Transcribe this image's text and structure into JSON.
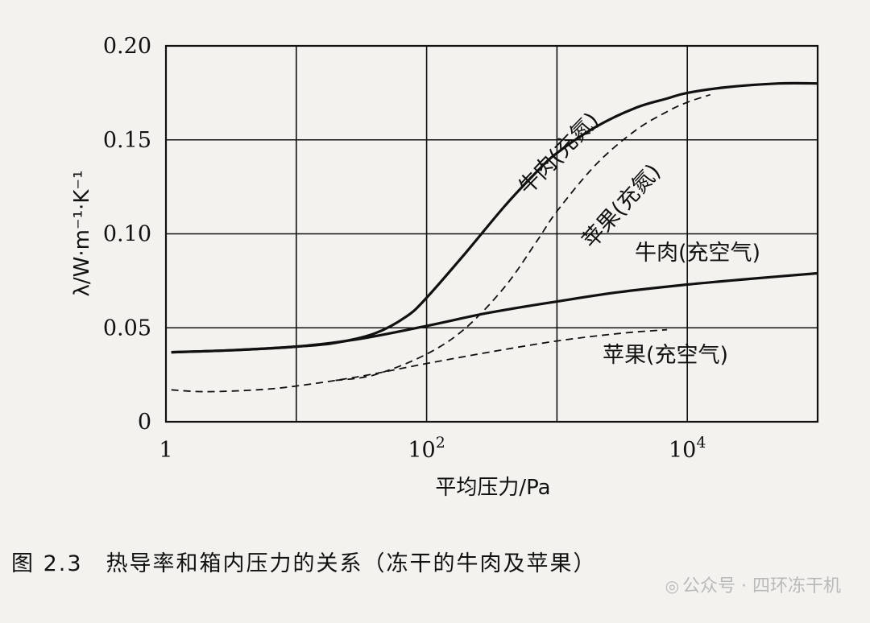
{
  "chart_data": {
    "type": "line",
    "x_scale": "log",
    "xlim": [
      1,
      100000
    ],
    "ylim": [
      0,
      0.2
    ],
    "xlabel": "平均压力/Pa",
    "ylabel": "λ/W·m⁻¹·K⁻¹",
    "x_ticks": [
      {
        "value": 1,
        "base": "1",
        "exp": ""
      },
      {
        "value": 100,
        "base": "10",
        "exp": "2"
      },
      {
        "value": 10000,
        "base": "10",
        "exp": "4"
      }
    ],
    "y_ticks": [
      {
        "value": 0,
        "label": "0"
      },
      {
        "value": 0.05,
        "label": "0.05"
      },
      {
        "value": 0.1,
        "label": "0.10"
      },
      {
        "value": 0.15,
        "label": "0.15"
      },
      {
        "value": 0.2,
        "label": "0.20"
      }
    ],
    "grid": true,
    "series": [
      {
        "name": "牛肉(充氮)",
        "style": "solid",
        "x": [
          1.1,
          3,
          10,
          20,
          40,
          70,
          100,
          200,
          400,
          700,
          1000,
          2000,
          4000,
          7000,
          10000,
          20000,
          50000,
          100000
        ],
        "y": [
          0.037,
          0.038,
          0.04,
          0.042,
          0.047,
          0.056,
          0.066,
          0.09,
          0.115,
          0.133,
          0.143,
          0.157,
          0.167,
          0.172,
          0.175,
          0.178,
          0.18,
          0.18
        ]
      },
      {
        "name": "苹果(充氮)",
        "style": "dashed",
        "x": [
          20,
          40,
          100,
          200,
          400,
          700,
          1000,
          2000,
          4000,
          7000,
          10000,
          15000
        ],
        "y": [
          0.022,
          0.025,
          0.036,
          0.05,
          0.072,
          0.096,
          0.112,
          0.137,
          0.155,
          0.165,
          0.17,
          0.174
        ]
      },
      {
        "name": "牛肉(充空气)",
        "style": "solid",
        "x": [
          1.1,
          3,
          10,
          30,
          100,
          300,
          1000,
          3000,
          10000,
          30000,
          100000
        ],
        "y": [
          0.037,
          0.038,
          0.04,
          0.044,
          0.051,
          0.058,
          0.064,
          0.069,
          0.073,
          0.076,
          0.079
        ]
      },
      {
        "name": "苹果(充空气)",
        "style": "dashed",
        "x": [
          1.1,
          2,
          5,
          10,
          30,
          100,
          300,
          1000,
          3000,
          7000
        ],
        "y": [
          0.017,
          0.016,
          0.017,
          0.019,
          0.024,
          0.031,
          0.037,
          0.043,
          0.047,
          0.049
        ]
      }
    ]
  },
  "caption": "图 2.3　热导率和箱内压力的关系（冻干的牛肉及苹果）",
  "watermark": "公众号 · 四环冻干机"
}
